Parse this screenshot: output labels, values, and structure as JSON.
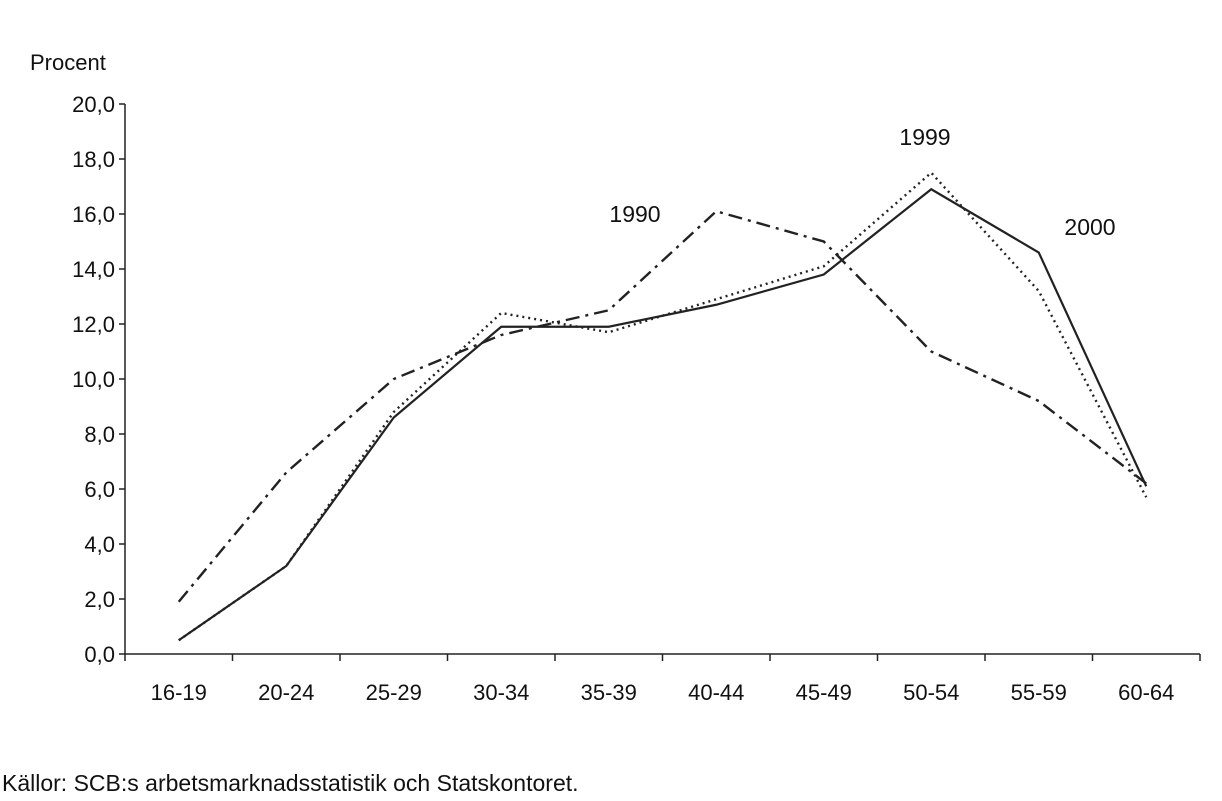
{
  "chart_data": {
    "type": "line",
    "ylabel": "Procent",
    "ylim": [
      0,
      20
    ],
    "yticks": [
      "0,0",
      "2,0",
      "4,0",
      "6,0",
      "8,0",
      "10,0",
      "12,0",
      "14,0",
      "16,0",
      "18,0",
      "20,0"
    ],
    "categories": [
      "16-19",
      "20-24",
      "25-29",
      "30-34",
      "35-39",
      "40-44",
      "45-49",
      "50-54",
      "55-59",
      "60-64"
    ],
    "grid": false,
    "series": [
      {
        "name": "1990",
        "style": "dash-dot",
        "color": "#222222",
        "values": [
          1.9,
          6.6,
          10.0,
          11.6,
          12.5,
          16.1,
          15.0,
          11.0,
          9.2,
          6.2
        ]
      },
      {
        "name": "1999",
        "style": "dotted",
        "color": "#222222",
        "values": [
          0.5,
          3.2,
          8.8,
          12.4,
          11.7,
          12.9,
          14.1,
          17.5,
          13.2,
          5.7
        ]
      },
      {
        "name": "2000",
        "style": "solid",
        "color": "#222222",
        "values": [
          0.5,
          3.2,
          8.6,
          11.9,
          11.9,
          12.7,
          13.8,
          16.9,
          14.6,
          6.1
        ]
      }
    ]
  },
  "source": "Källor: SCB:s arbetsmarknadsstatistik och Statskontoret."
}
